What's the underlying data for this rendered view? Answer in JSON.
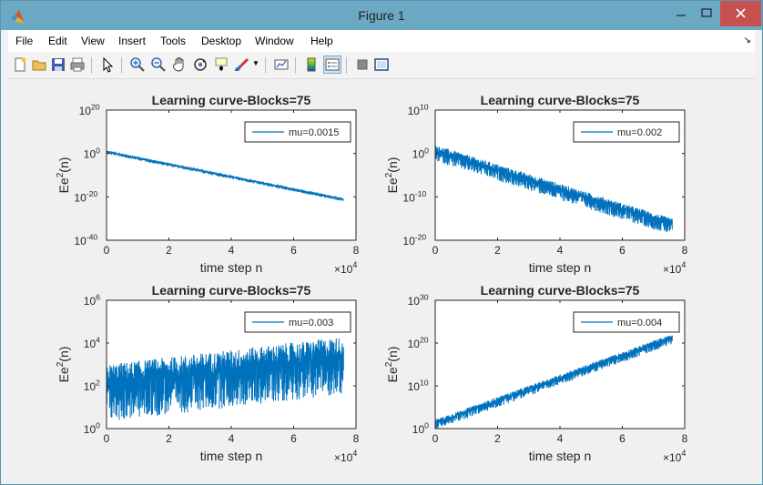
{
  "window": {
    "title": "Figure 1"
  },
  "menu": [
    "File",
    "Edit",
    "View",
    "Insert",
    "Tools",
    "Desktop",
    "Window",
    "Help"
  ],
  "toolbar": [
    "new-figure",
    "open-file",
    "save",
    "print",
    "select-pointer",
    "zoom-in",
    "zoom-out",
    "pan",
    "rotate-3d",
    "data-cursor",
    "brush",
    "link-plot",
    "colorbar",
    "legend",
    "hide-plot-tools",
    "show-plot-tools"
  ],
  "colors": {
    "series": "#0072bd",
    "axes": "#262626",
    "titlebar": "#6aa8c4"
  },
  "chart_data": [
    {
      "type": "line",
      "title": "Learning curve-Blocks=75",
      "xlabel": "time step n",
      "ylabel": "Ee2(n)",
      "ylabel_base": "Ee",
      "ylabel_sup": "2",
      "ylabel_tail": "(n)",
      "x_multiplier": "×10",
      "x_multiplier_exp": "4",
      "xlim": [
        0,
        8
      ],
      "xticks": [
        "0",
        "2",
        "4",
        "6",
        "8"
      ],
      "yscale": "log",
      "ylim_exp": [
        -40,
        20
      ],
      "yticks_exp": [
        "20",
        "0",
        "-20",
        "-40"
      ],
      "legend": "mu=0.0015",
      "legend_position": "top-right",
      "series": {
        "x_end": 7.6,
        "log_start": 1,
        "log_end": -21,
        "noise": 1.2
      }
    },
    {
      "type": "line",
      "title": "Learning curve-Blocks=75",
      "xlabel": "time step n",
      "ylabel": "Ee2(n)",
      "ylabel_base": "Ee",
      "ylabel_sup": "2",
      "ylabel_tail": "(n)",
      "x_multiplier": "×10",
      "x_multiplier_exp": "4",
      "xlim": [
        0,
        8
      ],
      "xticks": [
        "0",
        "2",
        "4",
        "6",
        "8"
      ],
      "yscale": "log",
      "ylim_exp": [
        -20,
        10
      ],
      "yticks_exp": [
        "10",
        "0",
        "-10",
        "-20"
      ],
      "legend": "mu=0.002",
      "legend_position": "top-right",
      "series": {
        "x_end": 7.6,
        "log_start": 1,
        "log_end": -16,
        "noise": 2.8
      }
    },
    {
      "type": "line",
      "title": "Learning curve-Blocks=75",
      "xlabel": "time step n",
      "ylabel": "Ee2(n)",
      "ylabel_base": "Ee",
      "ylabel_sup": "2",
      "ylabel_tail": "(n)",
      "x_multiplier": "×10",
      "x_multiplier_exp": "4",
      "xlim": [
        0,
        8
      ],
      "xticks": [
        "0",
        "2",
        "4",
        "6",
        "8"
      ],
      "yscale": "log",
      "ylim_exp": [
        0,
        6
      ],
      "yticks_exp": [
        "6",
        "4",
        "2",
        "0"
      ],
      "legend": "mu=0.003",
      "legend_position": "top-right",
      "series": {
        "x_end": 7.6,
        "log_start": 2.3,
        "log_end": 3.6,
        "noise": 2.0
      }
    },
    {
      "type": "line",
      "title": "Learning curve-Blocks=75",
      "xlabel": "time step n",
      "ylabel": "Ee2(n)",
      "ylabel_base": "Ee",
      "ylabel_sup": "2",
      "ylabel_tail": "(n)",
      "x_multiplier": "×10",
      "x_multiplier_exp": "4",
      "xlim": [
        0,
        8
      ],
      "xticks": [
        "0",
        "2",
        "4",
        "6",
        "8"
      ],
      "yscale": "log",
      "ylim_exp": [
        0,
        30
      ],
      "yticks_exp": [
        "30",
        "20",
        "10",
        "0"
      ],
      "legend": "mu=0.004",
      "legend_position": "top-right",
      "series": {
        "x_end": 7.6,
        "log_start": 1.5,
        "log_end": 21.5,
        "noise": 1.8
      }
    }
  ]
}
